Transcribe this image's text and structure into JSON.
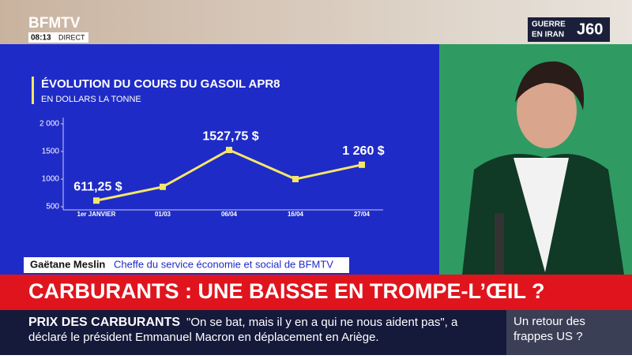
{
  "header": {
    "channel": "BFMTV",
    "time": "08:13",
    "live": "DIRECT",
    "badge_line1": "GUERRE",
    "badge_line2": "EN IRAN",
    "badge_day": "J60"
  },
  "chart_data": {
    "type": "line",
    "title": "ÉVOLUTION DU COURS DU GASOIL APR8",
    "subtitle": "EN DOLLARS LA TONNE",
    "categories": [
      "1er JANVIER",
      "01/03",
      "06/04",
      "16/04",
      "27/04"
    ],
    "series": [
      {
        "name": "Gasoil",
        "color": "#f4e66a",
        "values": [
          611.25,
          860,
          1527.75,
          1000,
          1260
        ],
        "value_labels": [
          "611,25 $",
          null,
          "1527,75 $",
          null,
          "1 260 $"
        ]
      }
    ],
    "ylim": [
      500,
      2000
    ],
    "yticks": [
      500,
      1000,
      1500,
      {
        "value": 2000,
        "label": "2 000"
      }
    ],
    "grid": false
  },
  "lower_third": {
    "name": "Gaëtane Meslin",
    "role": "Cheffe du service économie et social de BFMTV"
  },
  "headline": "CARBURANTS : UNE BAISSE EN TROMPE-L’ŒIL ?",
  "ticker": {
    "topic": "PRIX DES CARBURANTS",
    "line1": "\"On se bat, mais il y en a qui ne nous aident pas\", a",
    "line2": "déclaré le président Emmanuel Macron en déplacement en Ariège.",
    "next": "Un retour des frappes US ?"
  }
}
